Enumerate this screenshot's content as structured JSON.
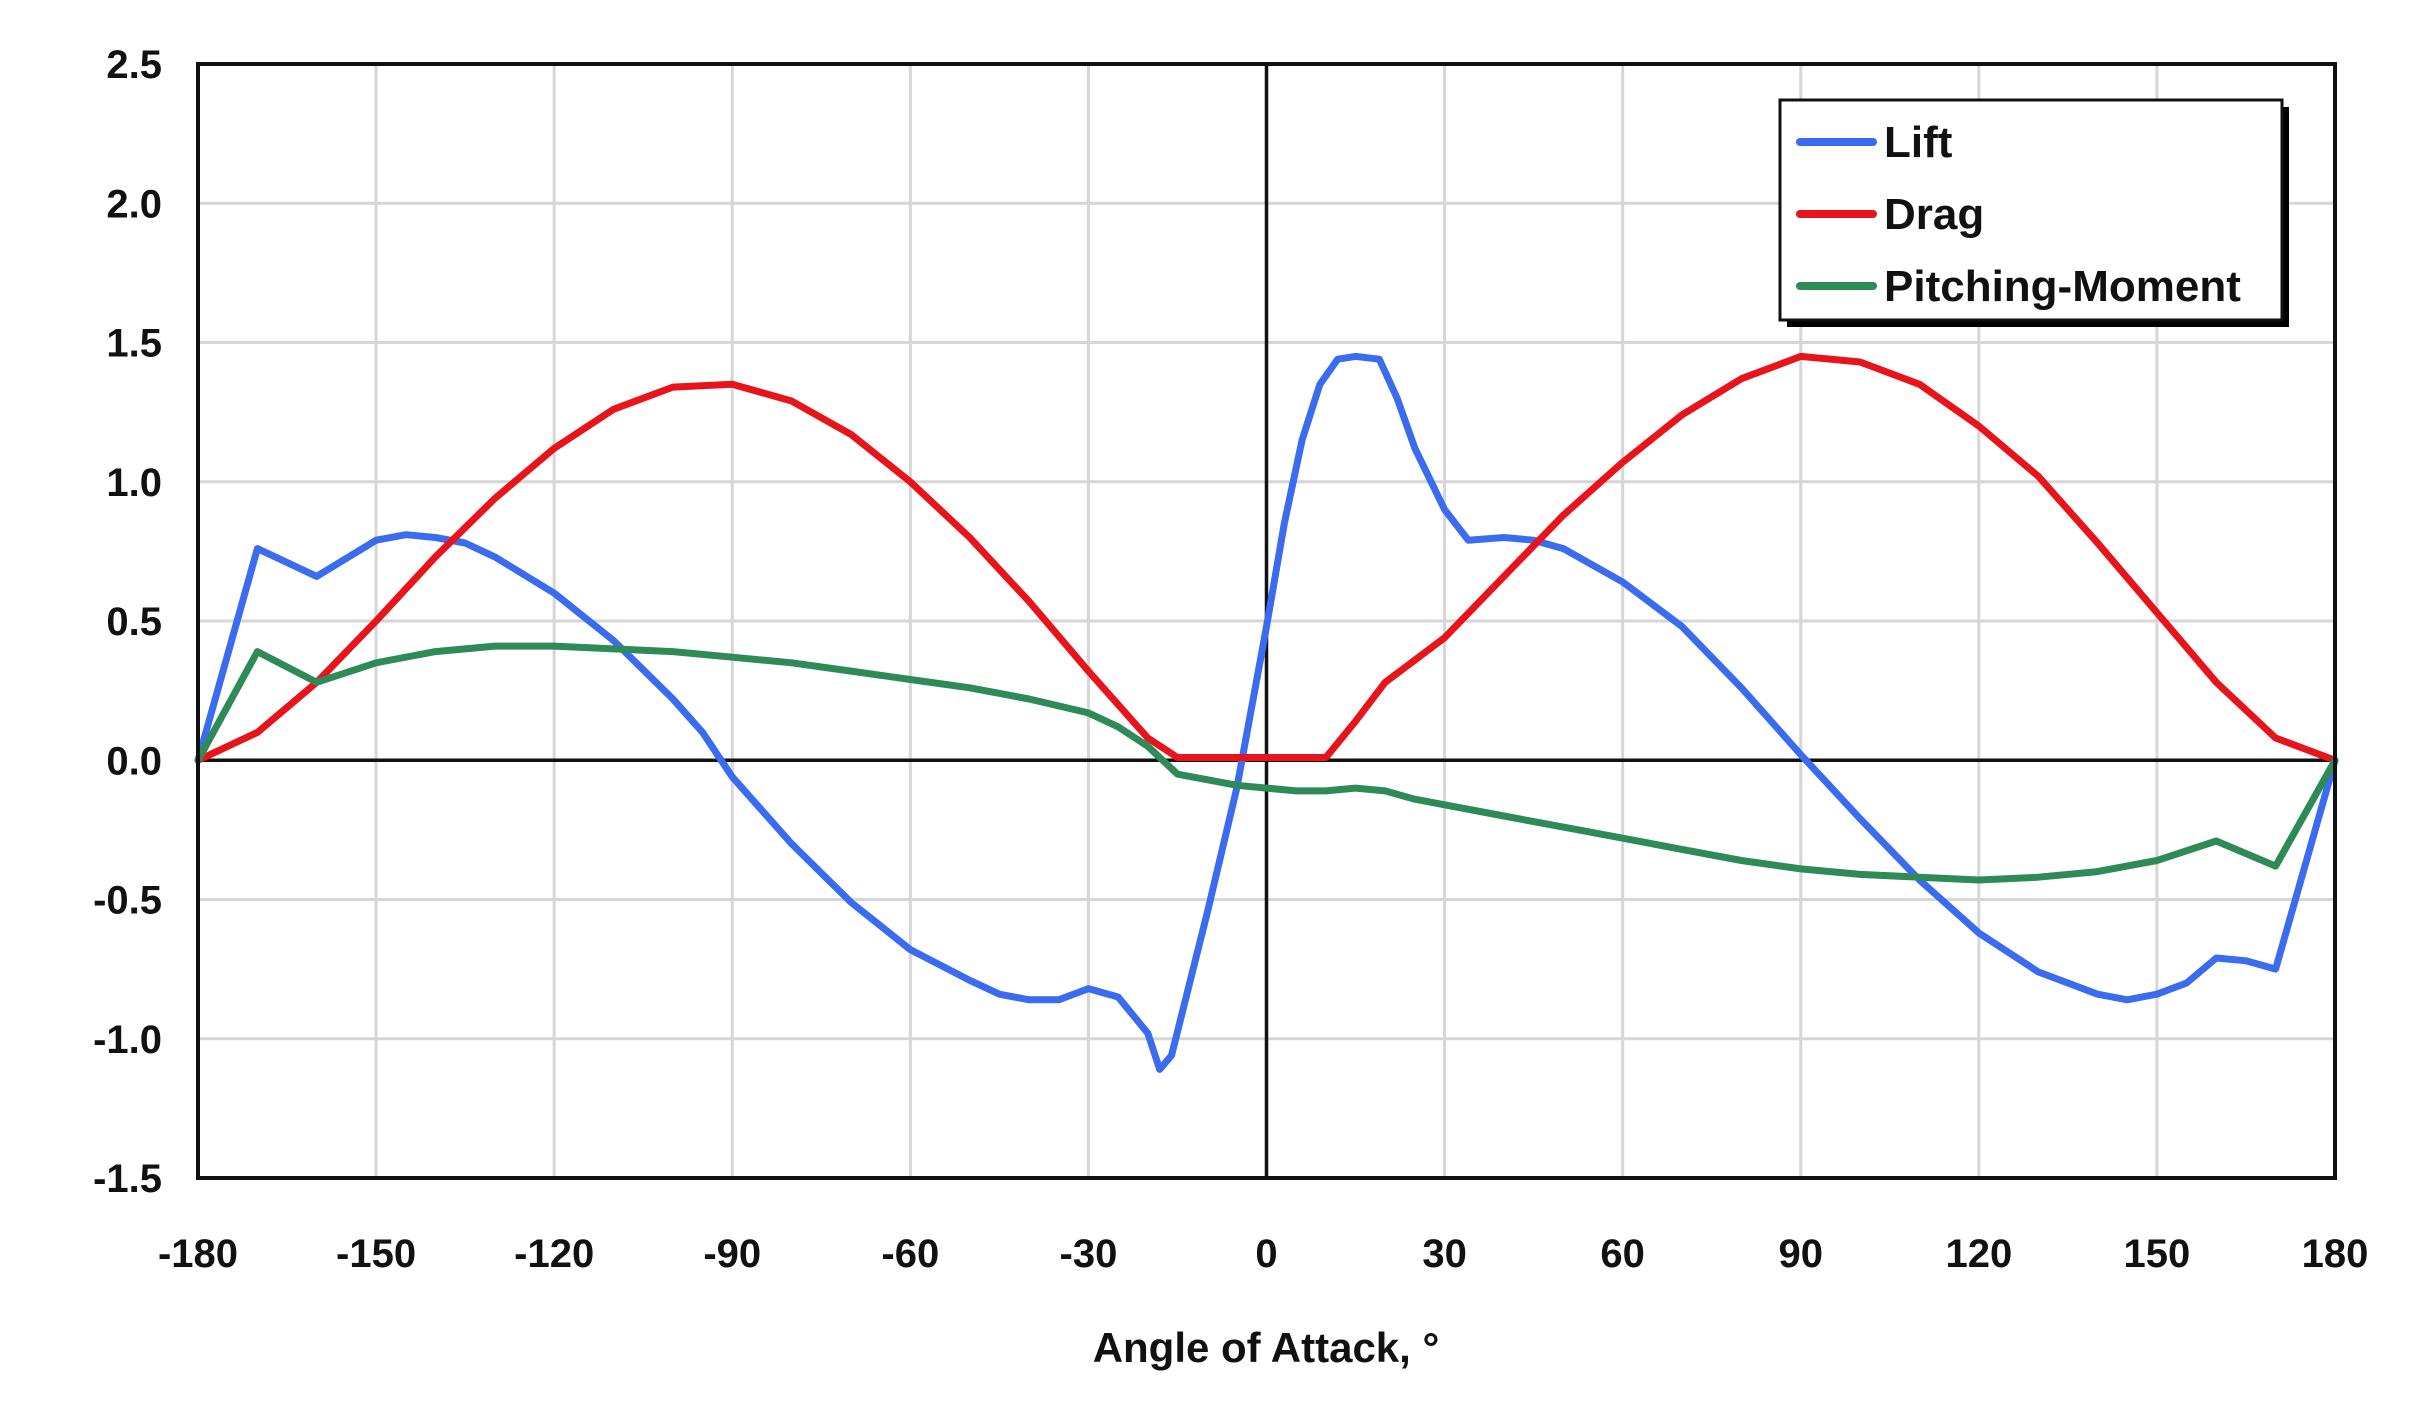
{
  "chart_data": {
    "type": "line",
    "title": "",
    "xlabel": "Angle of Attack, °",
    "ylabel": "",
    "xlim": [
      -180,
      180
    ],
    "ylim": [
      -1.5,
      2.5
    ],
    "x_ticks": [
      "-180",
      "-150",
      "-120",
      "-90",
      "-60",
      "-30",
      "0",
      "30",
      "60",
      "90",
      "120",
      "150",
      "180"
    ],
    "y_ticks": [
      "2.5",
      "2.0",
      "1.5",
      "1.0",
      "0.5",
      "0.0",
      "-0.5",
      "-1.0",
      "-1.5"
    ],
    "grid": true,
    "legend_position": "top-right",
    "series": [
      {
        "name": "Lift",
        "color": "#3b6cf0",
        "points": [
          [
            -180,
            0.0
          ],
          [
            -170,
            0.76
          ],
          [
            -160,
            0.66
          ],
          [
            -150,
            0.79
          ],
          [
            -145,
            0.81
          ],
          [
            -140,
            0.8
          ],
          [
            -135,
            0.78
          ],
          [
            -130,
            0.73
          ],
          [
            -120,
            0.6
          ],
          [
            -110,
            0.43
          ],
          [
            -100,
            0.22
          ],
          [
            -95,
            0.1
          ],
          [
            -90,
            -0.06
          ],
          [
            -80,
            -0.3
          ],
          [
            -70,
            -0.51
          ],
          [
            -60,
            -0.68
          ],
          [
            -50,
            -0.79
          ],
          [
            -45,
            -0.84
          ],
          [
            -40,
            -0.86
          ],
          [
            -35,
            -0.86
          ],
          [
            -30,
            -0.82
          ],
          [
            -25,
            -0.85
          ],
          [
            -20,
            -0.98
          ],
          [
            -18,
            -1.11
          ],
          [
            -16,
            -1.06
          ],
          [
            -10,
            -0.55
          ],
          [
            -5,
            -0.1
          ],
          [
            0,
            0.48
          ],
          [
            3,
            0.85
          ],
          [
            6,
            1.15
          ],
          [
            9,
            1.35
          ],
          [
            12,
            1.44
          ],
          [
            15,
            1.45
          ],
          [
            19,
            1.44
          ],
          [
            22,
            1.3
          ],
          [
            25,
            1.12
          ],
          [
            30,
            0.9
          ],
          [
            34,
            0.79
          ],
          [
            40,
            0.8
          ],
          [
            45,
            0.79
          ],
          [
            50,
            0.76
          ],
          [
            60,
            0.64
          ],
          [
            70,
            0.48
          ],
          [
            80,
            0.26
          ],
          [
            90,
            0.02
          ],
          [
            100,
            -0.21
          ],
          [
            110,
            -0.43
          ],
          [
            120,
            -0.62
          ],
          [
            130,
            -0.76
          ],
          [
            140,
            -0.84
          ],
          [
            145,
            -0.86
          ],
          [
            150,
            -0.84
          ],
          [
            155,
            -0.8
          ],
          [
            160,
            -0.71
          ],
          [
            165,
            -0.72
          ],
          [
            170,
            -0.75
          ],
          [
            180,
            0.0
          ]
        ]
      },
      {
        "name": "Drag",
        "color": "#e8141c",
        "points": [
          [
            -180,
            0.0
          ],
          [
            -170,
            0.1
          ],
          [
            -160,
            0.28
          ],
          [
            -150,
            0.5
          ],
          [
            -140,
            0.73
          ],
          [
            -130,
            0.94
          ],
          [
            -120,
            1.12
          ],
          [
            -110,
            1.26
          ],
          [
            -100,
            1.34
          ],
          [
            -90,
            1.35
          ],
          [
            -80,
            1.29
          ],
          [
            -70,
            1.17
          ],
          [
            -60,
            1.0
          ],
          [
            -50,
            0.8
          ],
          [
            -40,
            0.57
          ],
          [
            -30,
            0.32
          ],
          [
            -20,
            0.08
          ],
          [
            -15,
            0.01
          ],
          [
            -10,
            0.01
          ],
          [
            0,
            0.01
          ],
          [
            10,
            0.01
          ],
          [
            15,
            0.14
          ],
          [
            20,
            0.28
          ],
          [
            30,
            0.44
          ],
          [
            40,
            0.66
          ],
          [
            50,
            0.88
          ],
          [
            60,
            1.07
          ],
          [
            70,
            1.24
          ],
          [
            80,
            1.37
          ],
          [
            90,
            1.45
          ],
          [
            100,
            1.43
          ],
          [
            110,
            1.35
          ],
          [
            120,
            1.2
          ],
          [
            130,
            1.02
          ],
          [
            140,
            0.78
          ],
          [
            150,
            0.53
          ],
          [
            160,
            0.28
          ],
          [
            170,
            0.08
          ],
          [
            180,
            0.0
          ]
        ]
      },
      {
        "name": "Pitching-Moment",
        "color": "#2e8b57",
        "points": [
          [
            -180,
            0.0
          ],
          [
            -170,
            0.39
          ],
          [
            -160,
            0.28
          ],
          [
            -150,
            0.35
          ],
          [
            -140,
            0.39
          ],
          [
            -130,
            0.41
          ],
          [
            -120,
            0.41
          ],
          [
            -110,
            0.4
          ],
          [
            -100,
            0.39
          ],
          [
            -90,
            0.37
          ],
          [
            -80,
            0.35
          ],
          [
            -70,
            0.32
          ],
          [
            -60,
            0.29
          ],
          [
            -50,
            0.26
          ],
          [
            -40,
            0.22
          ],
          [
            -30,
            0.17
          ],
          [
            -25,
            0.12
          ],
          [
            -20,
            0.05
          ],
          [
            -15,
            -0.05
          ],
          [
            -10,
            -0.07
          ],
          [
            -5,
            -0.09
          ],
          [
            0,
            -0.1
          ],
          [
            5,
            -0.11
          ],
          [
            10,
            -0.11
          ],
          [
            15,
            -0.1
          ],
          [
            20,
            -0.11
          ],
          [
            25,
            -0.14
          ],
          [
            30,
            -0.16
          ],
          [
            40,
            -0.2
          ],
          [
            50,
            -0.24
          ],
          [
            60,
            -0.28
          ],
          [
            70,
            -0.32
          ],
          [
            80,
            -0.36
          ],
          [
            90,
            -0.39
          ],
          [
            100,
            -0.41
          ],
          [
            110,
            -0.42
          ],
          [
            120,
            -0.43
          ],
          [
            130,
            -0.42
          ],
          [
            140,
            -0.4
          ],
          [
            150,
            -0.36
          ],
          [
            160,
            -0.29
          ],
          [
            170,
            -0.38
          ],
          [
            180,
            0.0
          ]
        ]
      }
    ]
  }
}
